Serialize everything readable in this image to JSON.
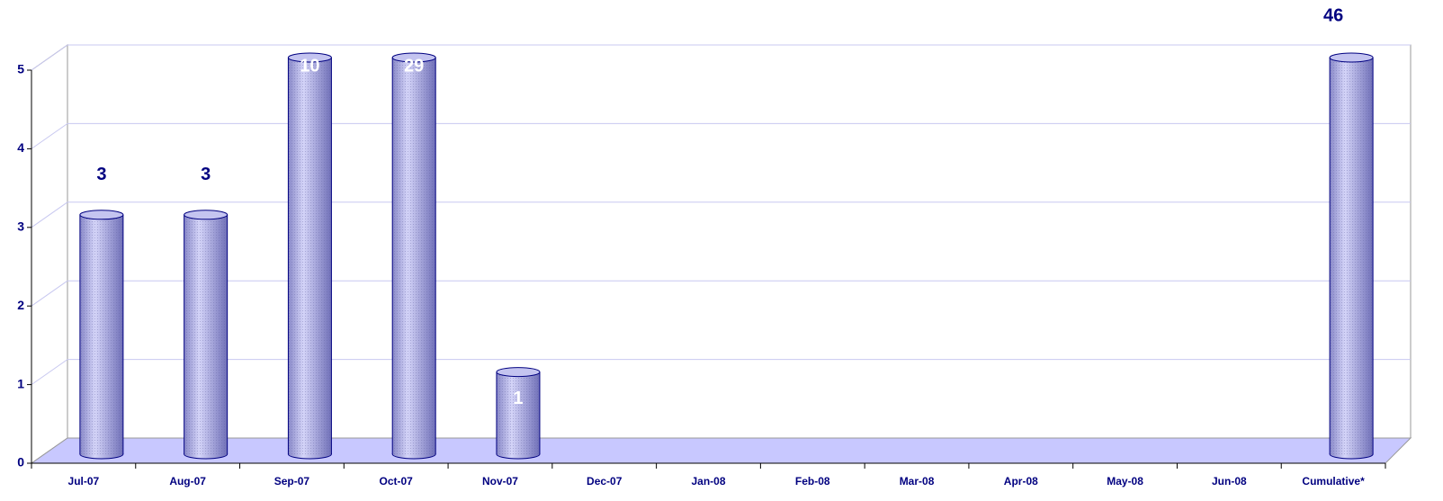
{
  "chart_data": {
    "type": "bar3d",
    "categories": [
      "Jul-07",
      "Aug-07",
      "Sep-07",
      "Oct-07",
      "Nov-07",
      "Dec-07",
      "Jan-08",
      "Feb-08",
      "Mar-08",
      "Apr-08",
      "May-08",
      "Jun-08",
      "Cumulative*"
    ],
    "values": [
      3,
      3,
      10,
      29,
      1,
      null,
      null,
      null,
      null,
      null,
      null,
      null,
      46
    ],
    "color": "#b4b4ec",
    "ylim": [
      0,
      5
    ],
    "yticks": [
      0,
      1,
      2,
      3,
      4,
      5
    ],
    "grid": true
  }
}
